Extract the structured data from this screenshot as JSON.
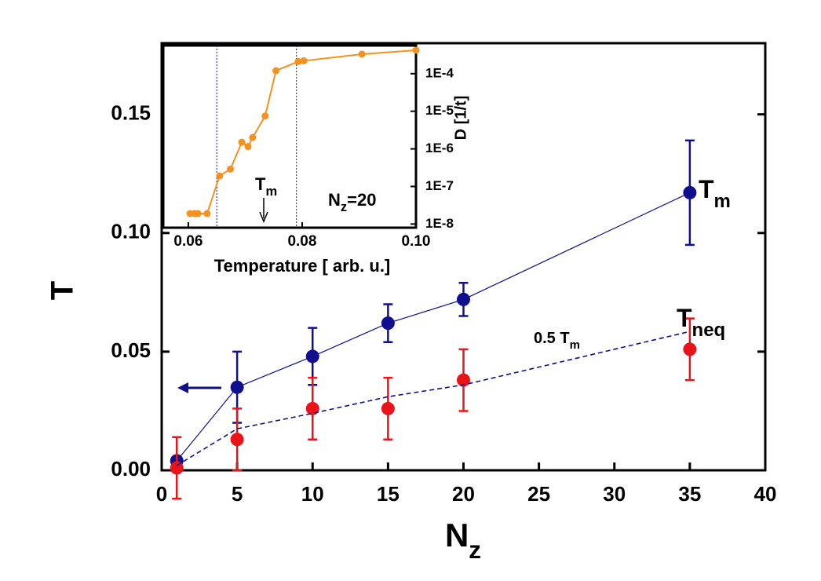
{
  "chart_data": [
    {
      "type": "line",
      "x_label": "Nz",
      "y_label": "T",
      "x": [
        1,
        5,
        10,
        15,
        20,
        35
      ],
      "xlim": [
        0,
        40
      ],
      "xticks": [
        0,
        5,
        10,
        15,
        20,
        25,
        30,
        35,
        40
      ],
      "ylim": [
        0,
        0.18
      ],
      "yticks": [
        {
          "value": 0,
          "label": "0.00"
        },
        0.05,
        {
          "value": 0.1,
          "label": "0.10"
        },
        0.15
      ],
      "series": [
        {
          "name": "Tm",
          "color": "#10108f",
          "style": "solid",
          "values": [
            0.004,
            0.035,
            0.048,
            0.062,
            0.072,
            0.117
          ],
          "errors": [
            0,
            0.015,
            0.012,
            0.008,
            0.007,
            0.022
          ]
        },
        {
          "name": "Tneq",
          "color": "#e8141a",
          "style": "markers",
          "values": [
            0.001,
            0.013,
            0.026,
            0.026,
            0.038,
            0.051
          ],
          "errors": [
            0.013,
            0.013,
            0.013,
            0.013,
            0.013,
            0.013
          ]
        },
        {
          "name": "0.5 Tm",
          "color": "#10108f",
          "style": "dashed",
          "values": [
            0.002,
            0.0175,
            0.024,
            0.031,
            0.036,
            0.0585
          ]
        }
      ]
    },
    {
      "type": "line",
      "x_label": "Temperature [ arb. u.]",
      "y_label": "D [1/t]",
      "annotation": "Tm",
      "label": "Nz=20",
      "log_y": true,
      "y_axis_side": "right",
      "color": "#f5911e",
      "x": [
        0.0603,
        0.0611,
        0.0617,
        0.0633,
        0.0655,
        0.0674,
        0.0694,
        0.0705,
        0.0713,
        0.0735,
        0.0754,
        0.0793,
        0.0803,
        0.0905,
        0.1
      ],
      "values": [
        1.9e-08,
        1.9e-08,
        1.9e-08,
        1.9e-08,
        1.9e-07,
        2.9e-07,
        1.5e-06,
        1.15e-06,
        2e-06,
        7.5e-06,
        0.00012,
        0.00021,
        0.00022,
        0.00033,
        0.00042
      ],
      "vlines": [
        0.065,
        0.079
      ],
      "xlim": [
        0.0556,
        0.1
      ],
      "xticks": [
        0.06,
        0.08,
        {
          "value": 0.1,
          "label": "0.10"
        }
      ],
      "ylim": [
        8e-09,
        0.00056
      ],
      "yticks": [
        {
          "value": 1e-08,
          "label": "1E-8"
        },
        {
          "value": 1e-07,
          "label": "1E-7"
        },
        {
          "value": 1e-06,
          "label": "1E-6"
        },
        {
          "value": 1e-05,
          "label": "1E-5"
        },
        {
          "value": 0.0001,
          "label": "1E-4"
        }
      ]
    }
  ]
}
